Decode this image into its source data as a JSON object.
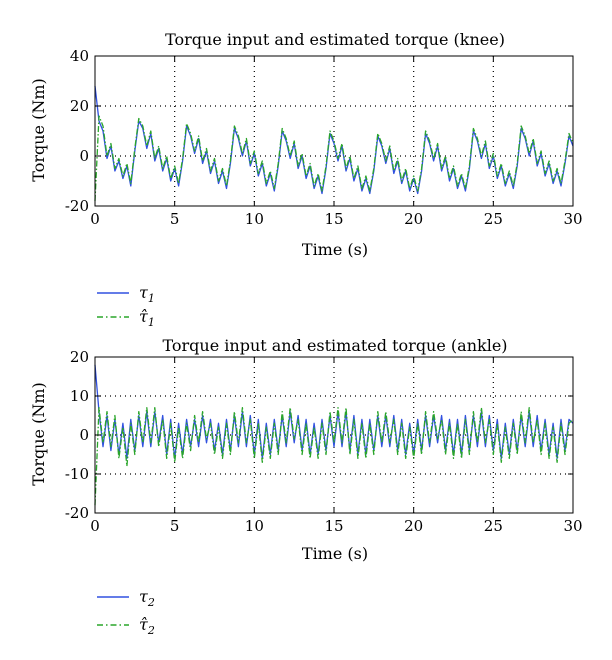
{
  "legend_colors": {
    "input": "#3050e0",
    "estimate": "#2aa52a"
  },
  "chart_data": [
    {
      "type": "line",
      "title": "Torque input and estimated torque (knee)",
      "xlabel": "Time (s)",
      "ylabel": "Torque (Nm)",
      "xlim": [
        0,
        30
      ],
      "ylim": [
        -20,
        40
      ],
      "xticks": [
        "0",
        "5",
        "10",
        "15",
        "20",
        "25",
        "30"
      ],
      "yticks": [
        "40",
        "20",
        "0",
        "-20"
      ],
      "grid": true,
      "legend_position": "below-left",
      "series": [
        {
          "name": "τ1",
          "legend_symbol": "τ",
          "legend_sub": "1",
          "style": "solid",
          "color": "#3050e0",
          "x": [
            0,
            0.25,
            0.5,
            0.75,
            1,
            1.25,
            1.5,
            1.75,
            2,
            2.25,
            2.5,
            2.75,
            3,
            3.25,
            3.5,
            3.75,
            4,
            4.25,
            4.5,
            4.75,
            5,
            5.25,
            5.5,
            5.75,
            6,
            6.25,
            6.5,
            6.75,
            7,
            7.25,
            7.5,
            7.75,
            8,
            8.25,
            8.5,
            8.75,
            9,
            9.25,
            9.5,
            9.75,
            10,
            10.25,
            10.5,
            10.75,
            11,
            11.25,
            11.5,
            11.75,
            12,
            12.25,
            12.5,
            12.75,
            13,
            13.25,
            13.5,
            13.75,
            14,
            14.25,
            14.5,
            14.75,
            15,
            15.25,
            15.5,
            15.75,
            16,
            16.25,
            16.5,
            16.75,
            17,
            17.25,
            17.5,
            17.75,
            18,
            18.25,
            18.5,
            18.75,
            19,
            19.25,
            19.5,
            19.75,
            20,
            20.25,
            20.5,
            20.75,
            21,
            21.25,
            21.5,
            21.75,
            22,
            22.25,
            22.5,
            22.75,
            23,
            23.25,
            23.5,
            23.75,
            24,
            24.25,
            24.5,
            24.75,
            25,
            25.25,
            25.5,
            25.75,
            26,
            26.25,
            26.5,
            26.75,
            27,
            27.25,
            27.5,
            27.75,
            28,
            28.25,
            28.5,
            28.75,
            29,
            29.25,
            29.5,
            29.75,
            30
          ],
          "y": [
            28,
            14,
            10,
            -1,
            4,
            -6,
            -2,
            -9,
            -4,
            -12,
            2,
            14,
            11,
            3,
            9,
            -2,
            3,
            -6,
            -1,
            -10,
            -5,
            -12,
            -2,
            12,
            8,
            1,
            7,
            -3,
            2,
            -7,
            -2,
            -11,
            -6,
            -13,
            -3,
            11,
            7,
            0,
            6,
            -4,
            1,
            -8,
            -3,
            -12,
            -7,
            -14,
            -4,
            10,
            6,
            -1,
            5,
            -5,
            0,
            -9,
            -4,
            -13,
            -8,
            -15,
            -5,
            9,
            5,
            -2,
            4,
            -6,
            -1,
            -10,
            -5,
            -14,
            -9,
            -15,
            -6,
            8,
            4,
            -3,
            3,
            -7,
            -2,
            -11,
            -6,
            -14,
            -9,
            -15,
            -6,
            9,
            5,
            -2,
            4,
            -6,
            -1,
            -10,
            -5,
            -13,
            -8,
            -14,
            -5,
            10,
            6,
            -1,
            5,
            -5,
            0,
            -9,
            -4,
            -12,
            -7,
            -13,
            -4,
            11,
            7,
            0,
            6,
            -4,
            1,
            -8,
            -3,
            -11,
            -6,
            -12,
            -3,
            8,
            4
          ]
        },
        {
          "name": "τ̂1",
          "legend_symbol": "τ̂",
          "legend_sub": "1",
          "style": "dashdot",
          "color": "#2aa52a",
          "x": [
            0,
            0.25,
            0.5,
            0.75,
            1,
            1.25,
            1.5,
            1.75,
            2,
            2.25,
            2.5,
            2.75,
            3,
            3.25,
            3.5,
            3.75,
            4,
            4.25,
            4.5,
            4.75,
            5,
            5.25,
            5.5,
            5.75,
            6,
            6.25,
            6.5,
            6.75,
            7,
            7.25,
            7.5,
            7.75,
            8,
            8.25,
            8.5,
            8.75,
            9,
            9.25,
            9.5,
            9.75,
            10,
            10.25,
            10.5,
            10.75,
            11,
            11.25,
            11.5,
            11.75,
            12,
            12.25,
            12.5,
            12.75,
            13,
            13.25,
            13.5,
            13.75,
            14,
            14.25,
            14.5,
            14.75,
            15,
            15.25,
            15.5,
            15.75,
            16,
            16.25,
            16.5,
            16.75,
            17,
            17.25,
            17.5,
            17.75,
            18,
            18.25,
            18.5,
            18.75,
            19,
            19.25,
            19.5,
            19.75,
            20,
            20.25,
            20.5,
            20.75,
            21,
            21.25,
            21.5,
            21.75,
            22,
            22.25,
            22.5,
            22.75,
            23,
            23.25,
            23.5,
            23.75,
            24,
            24.25,
            24.5,
            24.75,
            25,
            25.25,
            25.5,
            25.75,
            26,
            26.25,
            26.5,
            26.75,
            27,
            27.25,
            27.5,
            27.75,
            28,
            28.25,
            28.5,
            28.75,
            29,
            29.25,
            29.5,
            29.75,
            30
          ],
          "y": [
            -18,
            16,
            12,
            0,
            5,
            -5,
            -1,
            -8,
            -3,
            -11,
            3,
            15,
            12,
            4,
            10,
            -1,
            4,
            -5,
            0,
            -9,
            -4,
            -11,
            -1,
            13,
            9,
            2,
            8,
            -2,
            3,
            -6,
            -1,
            -10,
            -5,
            -12,
            -2,
            12,
            8,
            1,
            7,
            -3,
            2,
            -7,
            -2,
            -11,
            -6,
            -13,
            -3,
            11,
            7,
            0,
            6,
            -4,
            1,
            -8,
            -3,
            -12,
            -7,
            -14,
            -4,
            10,
            6,
            -1,
            5,
            -5,
            0,
            -9,
            -4,
            -13,
            -8,
            -14,
            -5,
            9,
            5,
            -2,
            4,
            -6,
            -1,
            -10,
            -5,
            -13,
            -8,
            -14,
            -5,
            10,
            6,
            -1,
            5,
            -5,
            0,
            -9,
            -4,
            -12,
            -7,
            -13,
            -4,
            11,
            7,
            0,
            6,
            -4,
            1,
            -8,
            -3,
            -11,
            -6,
            -12,
            -3,
            12,
            8,
            1,
            7,
            -3,
            2,
            -7,
            -2,
            -10,
            -5,
            -11,
            -2,
            9,
            5
          ]
        }
      ]
    },
    {
      "type": "line",
      "title": "Torque input and estimated torque (ankle)",
      "xlabel": "Time (s)",
      "ylabel": "Torque (Nm)",
      "xlim": [
        0,
        30
      ],
      "ylim": [
        -20,
        20
      ],
      "xticks": [
        "0",
        "5",
        "10",
        "15",
        "20",
        "25",
        "30"
      ],
      "yticks": [
        "20",
        "10",
        "0",
        "-10",
        "-20"
      ],
      "grid": true,
      "legend_position": "below-left",
      "series": [
        {
          "name": "τ2",
          "legend_symbol": "τ",
          "legend_sub": "2",
          "style": "solid",
          "color": "#3050e0",
          "x": [
            0,
            0.25,
            0.5,
            0.75,
            1,
            1.25,
            1.5,
            1.75,
            2,
            2.25,
            2.5,
            2.75,
            3,
            3.25,
            3.5,
            3.75,
            4,
            4.25,
            4.5,
            4.75,
            5,
            5.25,
            5.5,
            5.75,
            6,
            6.25,
            6.5,
            6.75,
            7,
            7.25,
            7.5,
            7.75,
            8,
            8.25,
            8.5,
            8.75,
            9,
            9.25,
            9.5,
            9.75,
            10,
            10.25,
            10.5,
            10.75,
            11,
            11.25,
            11.5,
            11.75,
            12,
            12.25,
            12.5,
            12.75,
            13,
            13.25,
            13.5,
            13.75,
            14,
            14.25,
            14.5,
            14.75,
            15,
            15.25,
            15.5,
            15.75,
            16,
            16.25,
            16.5,
            16.75,
            17,
            17.25,
            17.5,
            17.75,
            18,
            18.25,
            18.5,
            18.75,
            19,
            19.25,
            19.5,
            19.75,
            20,
            20.25,
            20.5,
            20.75,
            21,
            21.25,
            21.5,
            21.75,
            22,
            22.25,
            22.5,
            22.75,
            23,
            23.25,
            23.5,
            23.75,
            24,
            24.25,
            24.5,
            24.75,
            25,
            25.25,
            25.5,
            25.75,
            26,
            26.25,
            26.5,
            26.75,
            27,
            27.25,
            27.5,
            27.75,
            28,
            28.25,
            28.5,
            28.75,
            29,
            29.25,
            29.5,
            29.75,
            30
          ],
          "y": [
            18,
            6,
            -3,
            5,
            -4,
            4,
            -5,
            3,
            -6,
            4,
            -4,
            5,
            -3,
            6,
            -3,
            6,
            -2,
            5,
            -5,
            4,
            -6,
            3,
            -5,
            4,
            -3,
            4,
            -3,
            5,
            -2,
            4,
            -4,
            3,
            -5,
            4,
            -4,
            5,
            -3,
            6,
            -3,
            5,
            -5,
            4,
            -6,
            3,
            -5,
            4,
            -4,
            5,
            -3,
            6,
            -2,
            5,
            -4,
            4,
            -5,
            3,
            -5,
            4,
            -4,
            5,
            -3,
            6,
            -3,
            6,
            -4,
            5,
            -5,
            4,
            -5,
            4,
            -4,
            5,
            -3,
            5,
            -3,
            5,
            -4,
            4,
            -5,
            3,
            -5,
            4,
            -4,
            5,
            -3,
            5,
            -2,
            5,
            -4,
            4,
            -5,
            4,
            -5,
            5,
            -4,
            5,
            -3,
            6,
            -3,
            5,
            -4,
            4,
            -6,
            3,
            -5,
            4,
            -4,
            5,
            -3,
            6,
            -3,
            5,
            -4,
            4,
            -5,
            3,
            -6,
            4,
            -4,
            4,
            3
          ]
        },
        {
          "name": "τ̂2",
          "legend_symbol": "τ̂",
          "legend_sub": "2",
          "style": "dashdot",
          "color": "#2aa52a",
          "x": [
            0,
            0.25,
            0.5,
            0.75,
            1,
            1.25,
            1.5,
            1.75,
            2,
            2.25,
            2.5,
            2.75,
            3,
            3.25,
            3.5,
            3.75,
            4,
            4.25,
            4.5,
            4.75,
            5,
            5.25,
            5.5,
            5.75,
            6,
            6.25,
            6.5,
            6.75,
            7,
            7.25,
            7.5,
            7.75,
            8,
            8.25,
            8.5,
            8.75,
            9,
            9.25,
            9.5,
            9.75,
            10,
            10.25,
            10.5,
            10.75,
            11,
            11.25,
            11.5,
            11.75,
            12,
            12.25,
            12.5,
            12.75,
            13,
            13.25,
            13.5,
            13.75,
            14,
            14.25,
            14.5,
            14.75,
            15,
            15.25,
            15.5,
            15.75,
            16,
            16.25,
            16.5,
            16.75,
            17,
            17.25,
            17.5,
            17.75,
            18,
            18.25,
            18.5,
            18.75,
            19,
            19.25,
            19.5,
            19.75,
            20,
            20.25,
            20.5,
            20.75,
            21,
            21.25,
            21.5,
            21.75,
            22,
            22.25,
            22.5,
            22.75,
            23,
            23.25,
            23.5,
            23.75,
            24,
            24.25,
            24.5,
            24.75,
            25,
            25.25,
            25.5,
            25.75,
            26,
            26.25,
            26.5,
            26.75,
            27,
            27.25,
            27.5,
            27.75,
            28,
            28.25,
            28.5,
            28.75,
            29,
            29.25,
            29.5,
            29.75,
            30
          ],
          "y": [
            -18,
            7,
            -2,
            6,
            -3,
            5,
            -6,
            2,
            -8,
            3,
            -5,
            6,
            -2,
            7,
            -2,
            7,
            -3,
            4,
            -6,
            3,
            -7,
            2,
            -6,
            3,
            -4,
            5,
            -2,
            6,
            -1,
            3,
            -5,
            2,
            -6,
            3,
            -5,
            6,
            -2,
            7,
            -2,
            4,
            -6,
            3,
            -7,
            2,
            -6,
            3,
            -5,
            6,
            -2,
            7,
            -1,
            4,
            -5,
            3,
            -6,
            2,
            -6,
            3,
            -5,
            6,
            -2,
            7,
            -2,
            7,
            -5,
            4,
            -6,
            3,
            -6,
            3,
            -5,
            6,
            -2,
            6,
            -2,
            4,
            -5,
            3,
            -6,
            2,
            -6,
            3,
            -5,
            6,
            -2,
            6,
            -1,
            4,
            -5,
            3,
            -6,
            3,
            -6,
            4,
            -5,
            6,
            -2,
            7,
            -2,
            4,
            -5,
            3,
            -7,
            2,
            -6,
            3,
            -5,
            6,
            -2,
            7,
            -2,
            4,
            -5,
            3,
            -6,
            2,
            -7,
            3,
            -5,
            3,
            4
          ]
        }
      ]
    }
  ]
}
